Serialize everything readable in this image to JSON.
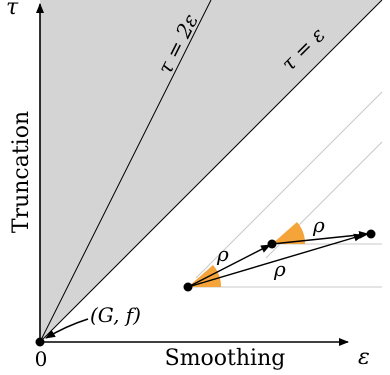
{
  "diagram": {
    "y_axis_symbol": "τ",
    "x_axis_symbol": "ε",
    "y_axis_label": "Truncation",
    "x_axis_label": "Smoothing",
    "origin_label": "0",
    "line_tau_2eps": "τ = 2ε",
    "line_tau_eps": "τ = ε",
    "point_label": "(G, f)",
    "rho": "ρ",
    "colors": {
      "shaded_region": "#d4d4d4",
      "angle_fill": "#f5a43a",
      "axis": "#000000",
      "guide_lines": "#c8c8c8"
    }
  }
}
